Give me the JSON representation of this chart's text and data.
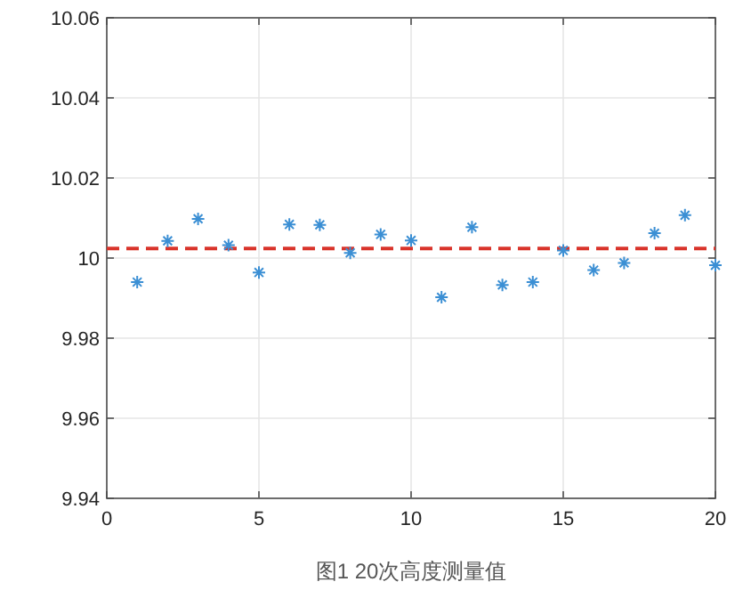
{
  "chart_data": {
    "type": "scatter",
    "x": [
      1,
      2,
      3,
      4,
      5,
      6,
      7,
      8,
      9,
      10,
      11,
      12,
      13,
      14,
      15,
      16,
      17,
      18,
      19,
      20
    ],
    "series": [
      {
        "color": "#3b8fd4",
        "values": [
          9.994,
          10.0043,
          10.0098,
          10.0032,
          9.9964,
          10.0084,
          10.0083,
          10.0013,
          10.0059,
          10.0044,
          9.9902,
          10.0077,
          9.9933,
          9.994,
          10.0019,
          9.997,
          9.9988,
          10.0062,
          10.0107,
          9.9982
        ]
      }
    ],
    "xlim": [
      0,
      20
    ],
    "ylim": [
      9.94,
      10.06
    ],
    "xticks": [
      0,
      5,
      10,
      15,
      20
    ],
    "yticks": [
      9.94,
      9.96,
      9.98,
      10,
      10.02,
      10.04,
      10.06
    ],
    "grid": true,
    "marker": "cross",
    "ref_lines": [
      {
        "axis": "y",
        "value": 10.0024,
        "color": "#d9342b",
        "line_style": "dashed"
      }
    ],
    "annotations": [
      "图1 20次高度测量值"
    ]
  }
}
